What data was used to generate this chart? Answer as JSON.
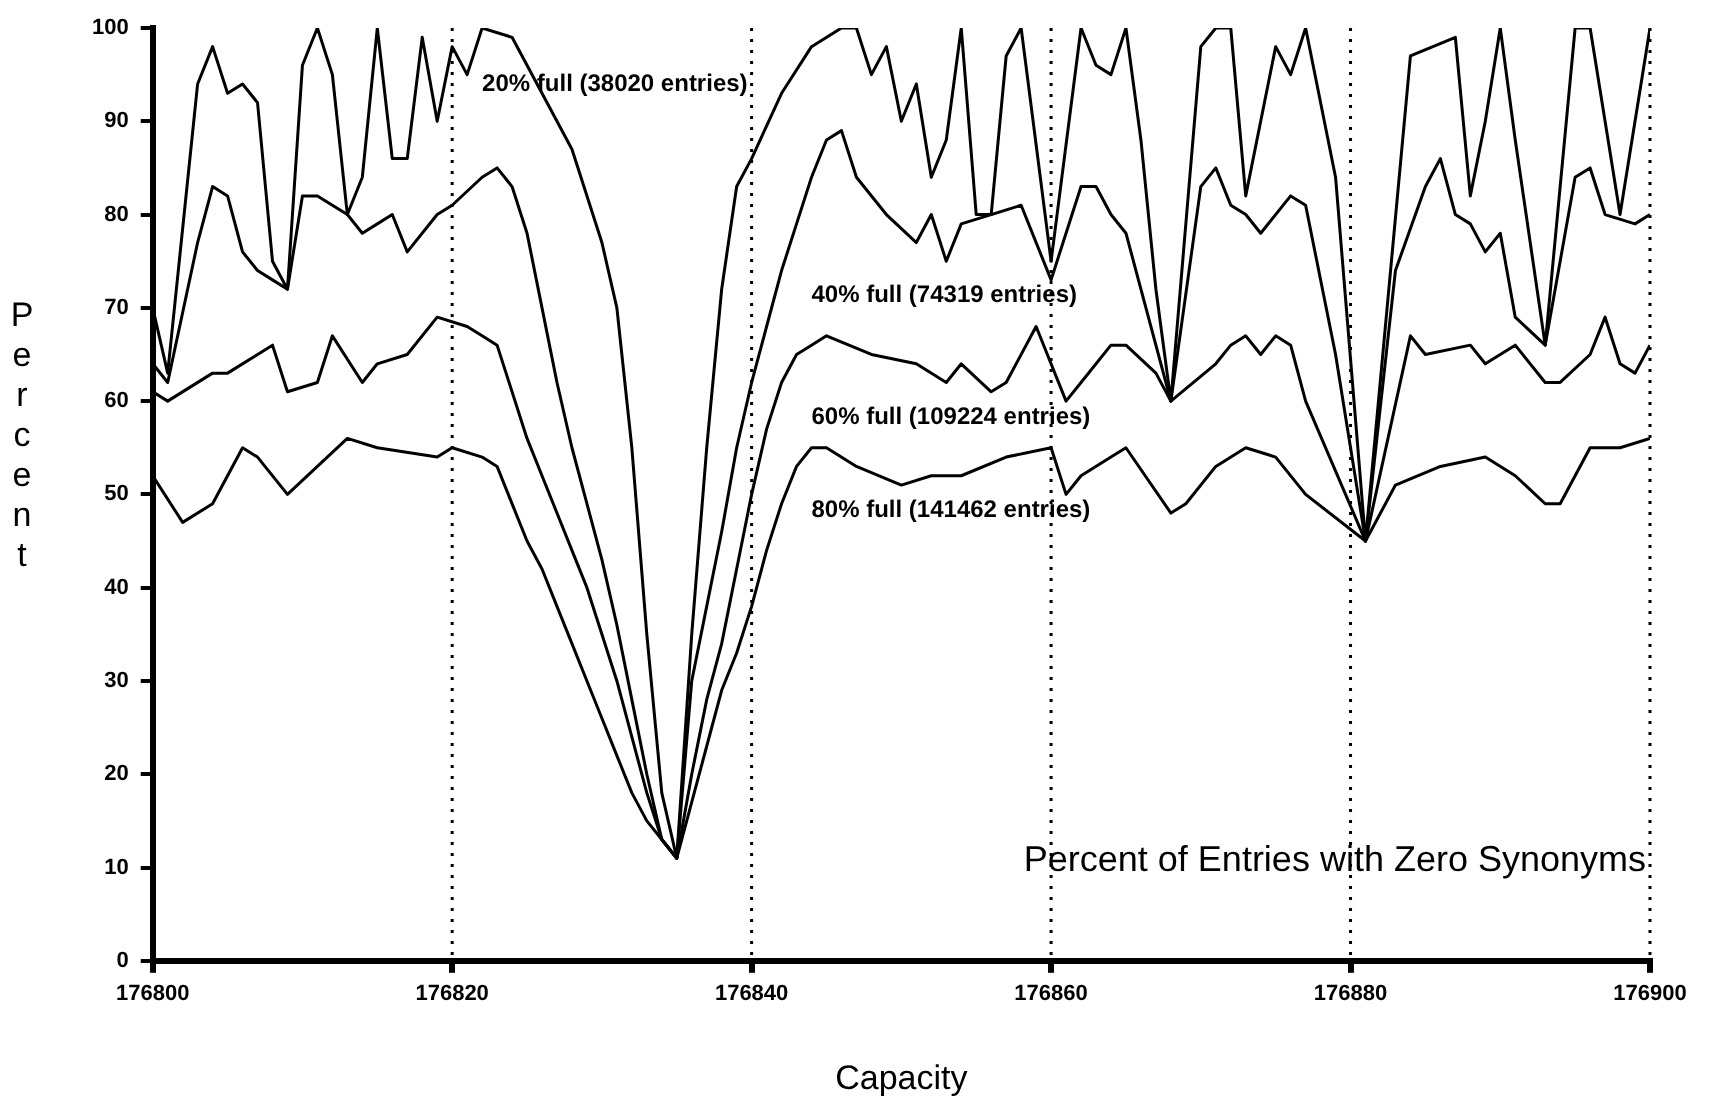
{
  "chart_data": {
    "type": "line",
    "title": "Percent of Entries with Zero Synonyms",
    "xlabel": "Capacity",
    "ylabel": "Percent",
    "xlim": [
      176800,
      176900
    ],
    "xticks": [
      176800,
      176820,
      176840,
      176860,
      176880,
      176900
    ],
    "ylim": [
      0,
      100
    ],
    "yticks": [
      0,
      10,
      20,
      30,
      40,
      50,
      60,
      70,
      80,
      90,
      100
    ],
    "grid": "x",
    "legend": false,
    "marker": "none",
    "line_style": "solid",
    "series": [
      {
        "name": "20% full (38020 entries)",
        "color": "#000000",
        "x": [
          176800,
          176801,
          176803,
          176804,
          176805,
          176806,
          176807,
          176808,
          176809,
          176810,
          176811,
          176812,
          176813,
          176814,
          176815,
          176816,
          176817,
          176818,
          176819,
          176820,
          176821,
          176822,
          176824,
          176826,
          176828,
          176830,
          176831,
          176832,
          176833,
          176834,
          176835,
          176836,
          176837,
          176838,
          176839,
          176840,
          176842,
          176844,
          176846,
          176847,
          176848,
          176849,
          176850,
          176851,
          176852,
          176853,
          176854,
          176855,
          176856,
          176857,
          176858,
          176860,
          176862,
          176863,
          176864,
          176865,
          176866,
          176867,
          176868,
          176870,
          176871,
          176872,
          176873,
          176875,
          176876,
          176877,
          176879,
          176881,
          176884,
          176887,
          176888,
          176889,
          176890,
          176891,
          176893,
          176895,
          176896,
          176898,
          176900
        ],
        "values": [
          70,
          63,
          94,
          98,
          93,
          94,
          92,
          75,
          72,
          96,
          100,
          95,
          80,
          84,
          100,
          86,
          86,
          99,
          90,
          98,
          95,
          100,
          99,
          93,
          87,
          77,
          70,
          55,
          35,
          18,
          11,
          35,
          55,
          72,
          83,
          86,
          93,
          98,
          100,
          100,
          95,
          98,
          90,
          94,
          84,
          88,
          100,
          80,
          80,
          97,
          100,
          75,
          100,
          96,
          95,
          100,
          88,
          72,
          60,
          98,
          100,
          100,
          82,
          98,
          95,
          100,
          84,
          45,
          97,
          99,
          82,
          90,
          100,
          88,
          66,
          100,
          100,
          80,
          100
        ]
      },
      {
        "name": "40% full (74319 entries)",
        "color": "#000000",
        "x": [
          176800,
          176801,
          176803,
          176804,
          176805,
          176806,
          176807,
          176808,
          176809,
          176810,
          176811,
          176813,
          176814,
          176815,
          176816,
          176817,
          176819,
          176820,
          176822,
          176823,
          176824,
          176825,
          176826,
          176827,
          176828,
          176829,
          176830,
          176831,
          176832,
          176833,
          176834,
          176835,
          176836,
          176837,
          176838,
          176839,
          176840,
          176841,
          176842,
          176843,
          176844,
          176845,
          176846,
          176847,
          176849,
          176851,
          176852,
          176853,
          176854,
          176856,
          176858,
          176860,
          176862,
          176863,
          176864,
          176865,
          176868,
          176870,
          176871,
          176872,
          176873,
          176874,
          176876,
          176877,
          176879,
          176881,
          176883,
          176885,
          176886,
          176887,
          176888,
          176889,
          176890,
          176891,
          176893,
          176895,
          176896,
          176897,
          176899,
          176900
        ],
        "values": [
          64,
          62,
          77,
          83,
          82,
          76,
          74,
          73,
          72,
          82,
          82,
          80,
          78,
          79,
          80,
          76,
          80,
          81,
          84,
          85,
          83,
          78,
          70,
          62,
          55,
          49,
          43,
          36,
          28,
          20,
          13,
          11,
          30,
          38,
          46,
          55,
          62,
          68,
          74,
          79,
          84,
          88,
          89,
          84,
          80,
          77,
          80,
          75,
          79,
          80,
          81,
          73,
          83,
          83,
          80,
          78,
          60,
          83,
          85,
          81,
          80,
          78,
          82,
          81,
          65,
          45,
          74,
          83,
          86,
          80,
          79,
          76,
          78,
          69,
          66,
          84,
          85,
          80,
          79,
          80
        ]
      },
      {
        "name": "60% full (109224 entries)",
        "color": "#000000",
        "x": [
          176800,
          176801,
          176804,
          176805,
          176808,
          176809,
          176811,
          176812,
          176814,
          176815,
          176817,
          176819,
          176821,
          176822,
          176823,
          176825,
          176826,
          176827,
          176828,
          176829,
          176830,
          176831,
          176832,
          176833,
          176834,
          176835,
          176836,
          176837,
          176838,
          176839,
          176840,
          176841,
          176842,
          176843,
          176844,
          176845,
          176848,
          176851,
          176853,
          176854,
          176856,
          176857,
          176859,
          176861,
          176862,
          176864,
          176865,
          176867,
          176868,
          176871,
          176872,
          176873,
          176874,
          176875,
          176876,
          176877,
          176881,
          176884,
          176885,
          176888,
          176889,
          176891,
          176893,
          176894,
          176896,
          176897,
          176898,
          176899,
          176900
        ],
        "values": [
          61,
          60,
          63,
          63,
          66,
          61,
          62,
          67,
          62,
          64,
          65,
          69,
          68,
          67,
          66,
          56,
          52,
          48,
          44,
          40,
          35,
          30,
          24,
          18,
          13,
          11,
          20,
          28,
          34,
          42,
          50,
          57,
          62,
          65,
          66,
          67,
          65,
          64,
          62,
          64,
          61,
          62,
          68,
          60,
          62,
          66,
          66,
          63,
          60,
          64,
          66,
          67,
          65,
          67,
          66,
          60,
          45,
          67,
          65,
          66,
          64,
          66,
          62,
          62,
          65,
          69,
          64,
          63,
          66
        ]
      },
      {
        "name": "80% full (141462 entries)",
        "color": "#000000",
        "x": [
          176800,
          176802,
          176804,
          176806,
          176807,
          176809,
          176811,
          176813,
          176815,
          176819,
          176820,
          176822,
          176823,
          176825,
          176826,
          176827,
          176828,
          176829,
          176830,
          176831,
          176832,
          176833,
          176834,
          176835,
          176836,
          176837,
          176838,
          176839,
          176840,
          176841,
          176842,
          176843,
          176844,
          176845,
          176847,
          176850,
          176852,
          176854,
          176857,
          176860,
          176861,
          176862,
          176864,
          176865,
          176868,
          176869,
          176871,
          176873,
          176875,
          176877,
          176881,
          176883,
          176886,
          176889,
          176891,
          176893,
          176894,
          176896,
          176898,
          176900
        ],
        "values": [
          52,
          47,
          49,
          55,
          54,
          50,
          53,
          56,
          55,
          54,
          55,
          54,
          53,
          45,
          42,
          38,
          34,
          30,
          26,
          22,
          18,
          15,
          13,
          11,
          17,
          23,
          29,
          33,
          38,
          44,
          49,
          53,
          55,
          55,
          53,
          51,
          52,
          52,
          54,
          55,
          50,
          52,
          54,
          55,
          48,
          49,
          53,
          55,
          54,
          50,
          45,
          51,
          53,
          54,
          52,
          49,
          49,
          55,
          55,
          56
        ]
      }
    ]
  }
}
